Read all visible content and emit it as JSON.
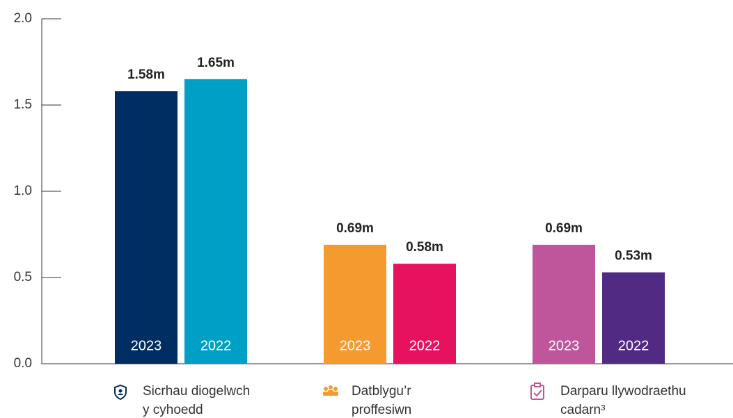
{
  "chart_data": {
    "type": "bar",
    "categories": [
      [
        "Sicrhau diogelwch",
        "y cyhoedd"
      ],
      [
        "Datblygu’r",
        "proffesiwn"
      ],
      [
        "Darparu llywodraethu",
        "cadarn³"
      ]
    ],
    "series": [
      {
        "name": "2023",
        "colors": [
          "#002d62",
          "#f59a2f",
          "#bf569b"
        ],
        "values": [
          1.58,
          0.69,
          0.69
        ],
        "value_labels": [
          "1.58m",
          "0.69m",
          "0.69m"
        ]
      },
      {
        "name": "2022",
        "colors": [
          "#00a0c6",
          "#e6125f",
          "#512a84"
        ],
        "values": [
          1.65,
          0.58,
          0.53
        ],
        "value_labels": [
          "1.65m",
          "0.58m",
          "0.53m"
        ]
      }
    ],
    "ylim": [
      0,
      2
    ],
    "yticks": [
      {
        "value": 0,
        "label": "0.0"
      },
      {
        "value": 0.5,
        "label": "0.5"
      },
      {
        "value": 1,
        "label": "1.0"
      },
      {
        "value": 1.5,
        "label": "1.5"
      },
      {
        "value": 2,
        "label": "2.0"
      }
    ]
  }
}
